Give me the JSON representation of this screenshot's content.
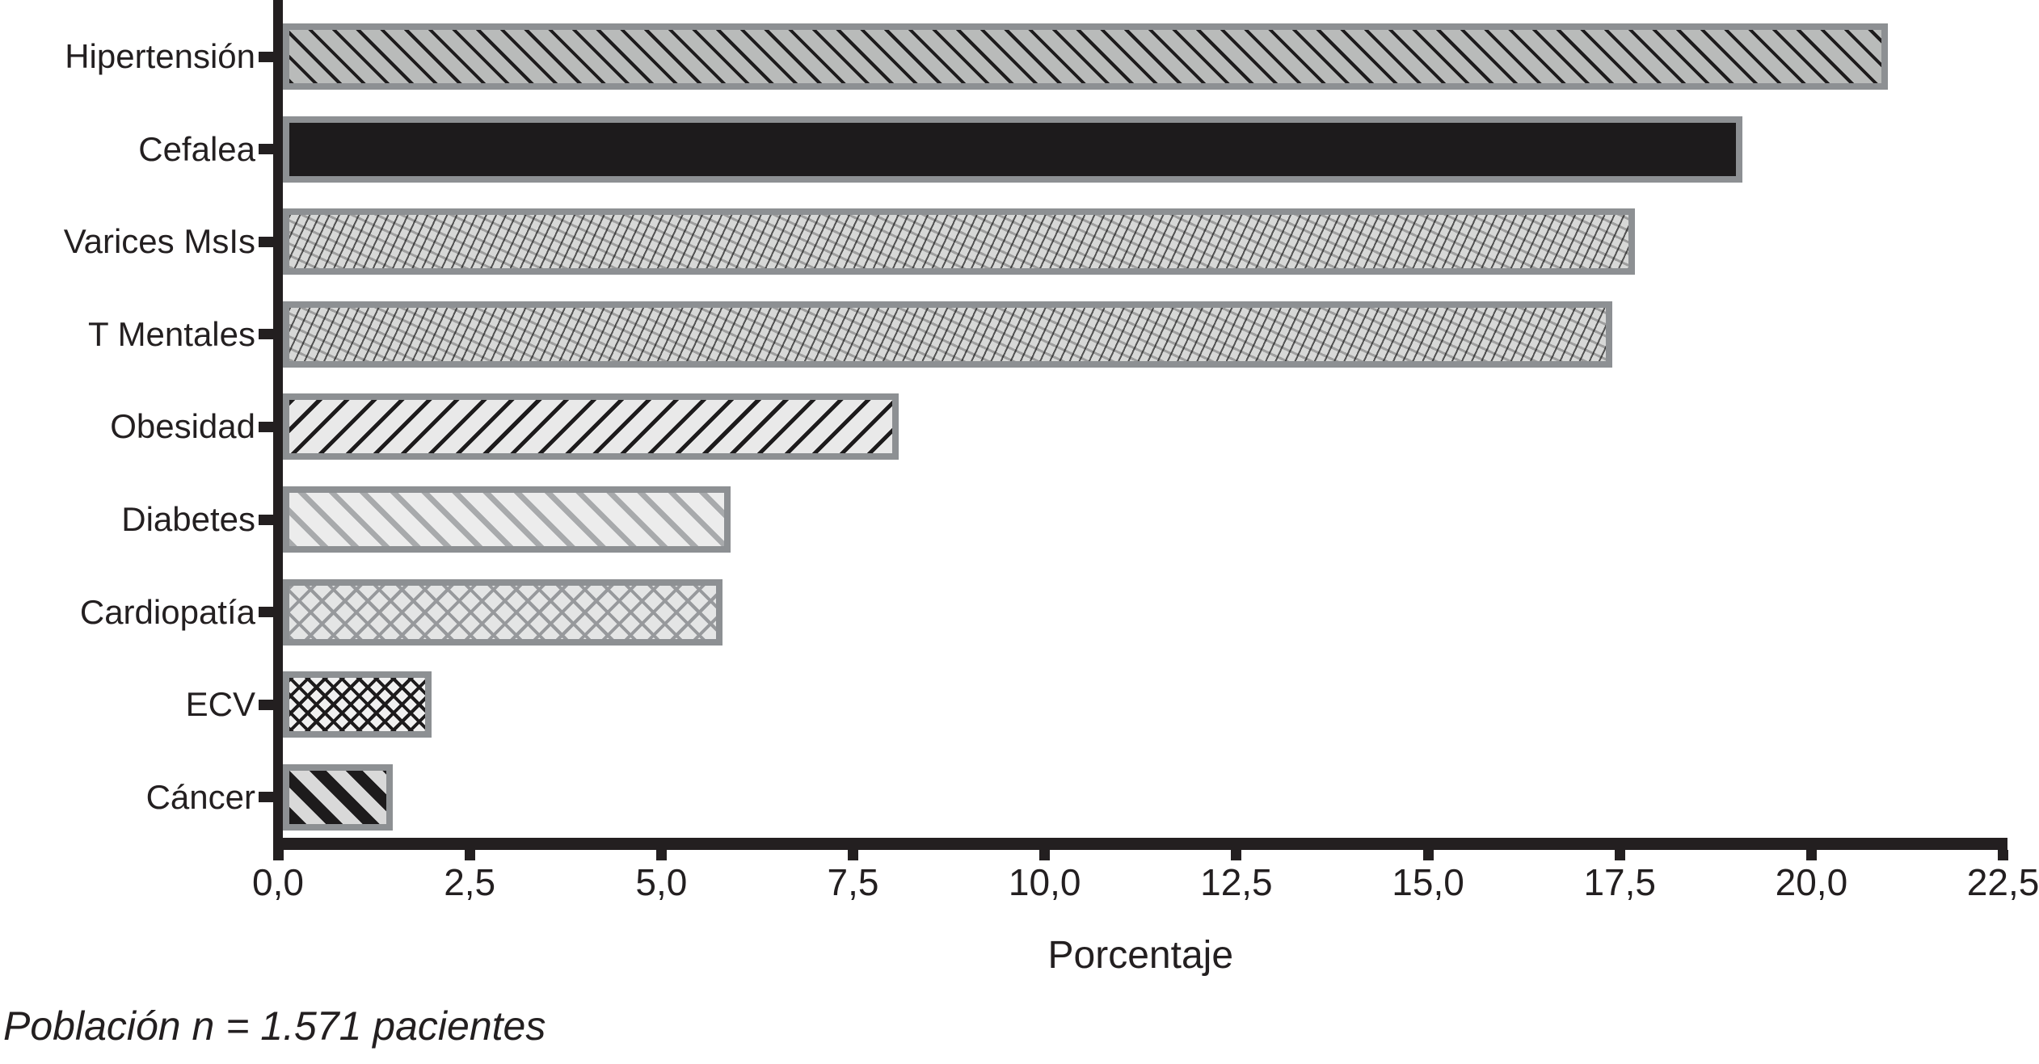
{
  "figure": {
    "xlabel": "Porcentaje",
    "footnote": "Población n = 1.571 pacientes",
    "colors": {
      "axis": "#231f20",
      "bar_border": "#8d9093",
      "solid_bar_fill": "#1d1b1c",
      "text": "#231f20",
      "background": "#ffffff"
    }
  },
  "chart_data": {
    "type": "bar",
    "orientation": "horizontal",
    "title": "",
    "xlabel": "Porcentaje",
    "ylabel": "",
    "xlim": [
      0,
      22.5
    ],
    "grid": false,
    "legend_position": "none",
    "categories": [
      "Hipertensión",
      "Cefalea",
      "Varices MsIs",
      "T Mentales",
      "Obesidad",
      "Diabetes",
      "Cardiopatía",
      "ECV",
      "Cáncer"
    ],
    "values": [
      21.0,
      19.1,
      17.7,
      17.4,
      8.1,
      5.9,
      5.8,
      2.0,
      1.5
    ],
    "bar_patterns": [
      "diagonal-back-black-on-gray",
      "solid-black",
      "woven-texture",
      "woven-texture",
      "diagonal-fwd-black",
      "diagonal-back-gray",
      "diamond-crosshatch-gray",
      "diamond-crosshatch-black",
      "bold-diagonal-back-black"
    ],
    "x_tick_values": [
      0,
      2.5,
      5,
      7.5,
      10,
      12.5,
      15,
      17.5,
      20,
      22.5
    ],
    "x_tick_labels": [
      "0,0",
      "2,5",
      "5,0",
      "7,5",
      "10,0",
      "12,5",
      "15,0",
      "17,5",
      "20,0",
      "22,5"
    ],
    "annotations": [
      "Población n = 1.571 pacientes"
    ]
  }
}
